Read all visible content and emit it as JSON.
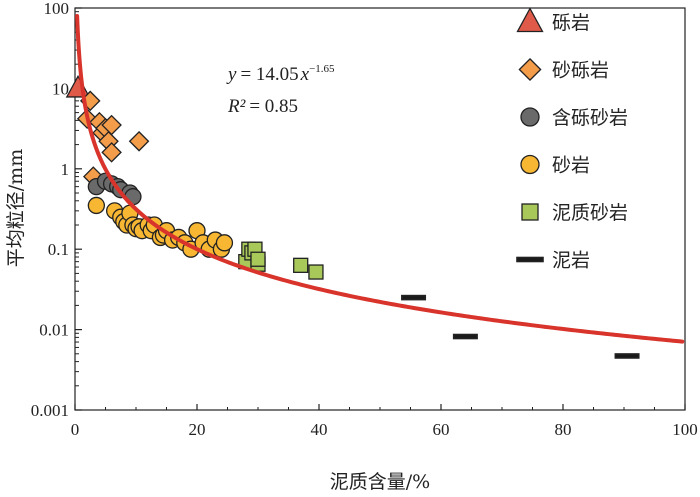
{
  "chart_data": {
    "type": "scatter",
    "xlabel": "泥质含量/%",
    "ylabel": "平均粒径/mm",
    "xlim": [
      0,
      100
    ],
    "ylim": [
      0.001,
      100
    ],
    "yscale": "log",
    "xticks": [
      "0",
      "20",
      "40",
      "60",
      "80",
      "100"
    ],
    "yticks": [
      "0.001",
      "0.01",
      "0.1",
      "1",
      "10",
      "100"
    ],
    "grid": false,
    "legend_position": "right",
    "series": [
      {
        "name": "砾岩",
        "marker": "triangle",
        "color": "#e05a4a",
        "points": [
          [
            0.5,
            10
          ]
        ]
      },
      {
        "name": "砂砾岩",
        "marker": "diamond",
        "color": "#f39c4a",
        "points": [
          [
            2,
            4.2
          ],
          [
            2.5,
            7
          ],
          [
            3,
            0.8
          ],
          [
            4,
            3.8
          ],
          [
            4.5,
            2.8
          ],
          [
            5,
            3.2
          ],
          [
            5.5,
            2.2
          ],
          [
            6,
            1.6
          ],
          [
            6,
            3.5
          ],
          [
            10.5,
            2.2
          ]
        ]
      },
      {
        "name": "含砾砂岩",
        "marker": "circle",
        "color": "#6a6a6a",
        "points": [
          [
            3.5,
            0.6
          ],
          [
            5,
            0.7
          ],
          [
            6,
            0.65
          ],
          [
            7,
            0.6
          ],
          [
            7.5,
            0.55
          ],
          [
            9,
            0.5
          ],
          [
            9.5,
            0.45
          ]
        ]
      },
      {
        "name": "砂岩",
        "marker": "circle",
        "color": "#f7b733",
        "points": [
          [
            3.5,
            0.35
          ],
          [
            6.5,
            0.3
          ],
          [
            7.5,
            0.25
          ],
          [
            8,
            0.22
          ],
          [
            8.5,
            0.2
          ],
          [
            9,
            0.28
          ],
          [
            9.5,
            0.2
          ],
          [
            10,
            0.18
          ],
          [
            10.5,
            0.19
          ],
          [
            11,
            0.17
          ],
          [
            12,
            0.2
          ],
          [
            12.5,
            0.17
          ],
          [
            13,
            0.2
          ],
          [
            14,
            0.14
          ],
          [
            14.5,
            0.15
          ],
          [
            15,
            0.17
          ],
          [
            16,
            0.13
          ],
          [
            17,
            0.14
          ],
          [
            18,
            0.12
          ],
          [
            19,
            0.1
          ],
          [
            20,
            0.17
          ],
          [
            21,
            0.12
          ],
          [
            22,
            0.1
          ],
          [
            23,
            0.13
          ],
          [
            24,
            0.1
          ],
          [
            24.5,
            0.12
          ]
        ]
      },
      {
        "name": "泥质砂岩",
        "marker": "square",
        "color": "#a8c95a",
        "points": [
          [
            28,
            0.07
          ],
          [
            28.5,
            0.1
          ],
          [
            29,
            0.09
          ],
          [
            29.5,
            0.1
          ],
          [
            30,
            0.065
          ],
          [
            30,
            0.075
          ],
          [
            37,
            0.063
          ],
          [
            39.5,
            0.052
          ]
        ]
      },
      {
        "name": "泥岩",
        "marker": "dash",
        "color": "#333333",
        "points": [
          [
            55.5,
            0.025
          ],
          [
            64,
            0.0082
          ],
          [
            90.5,
            0.0047
          ]
        ]
      }
    ],
    "fit": {
      "equation": "y = 14.05x^-1.65",
      "equation_lhs": "y",
      "equation_coef": "= 14.05",
      "equation_var": "x",
      "equation_exp": "−1.65",
      "r2_label": "R²",
      "r2_value": "= 0.85",
      "a": 14.05,
      "b": -1.65,
      "color": "#d9342b"
    }
  }
}
